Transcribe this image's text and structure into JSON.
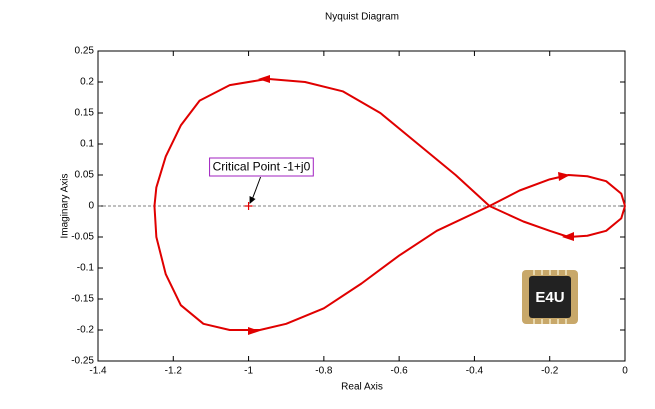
{
  "chart_data": {
    "type": "line",
    "title": "Nyquist Diagram",
    "xlabel": "Real Axis",
    "ylabel": "Imaginary Axis",
    "x": [
      0,
      -0.01,
      -0.05,
      -0.1,
      -0.15,
      -0.2,
      -0.27,
      -0.36,
      -0.45,
      -0.55,
      -0.65,
      -0.75,
      -0.85,
      -0.95,
      -1.05,
      -1.13,
      -1.18,
      -1.22,
      -1.245,
      -1.25,
      -1.245,
      -1.22,
      -1.18,
      -1.12,
      -1.05,
      -0.97,
      -0.9,
      -0.8,
      -0.7,
      -0.6,
      -0.5,
      -0.36,
      -0.28,
      -0.2,
      -0.15,
      -0.1,
      -0.05,
      -0.01,
      0
    ],
    "series": [
      {
        "color": "#e00000",
        "values": [
          0,
          -0.02,
          -0.04,
          -0.048,
          -0.05,
          -0.04,
          -0.025,
          0,
          0.05,
          0.1,
          0.15,
          0.185,
          0.2,
          0.205,
          0.195,
          0.17,
          0.13,
          0.08,
          0.03,
          0,
          -0.05,
          -0.11,
          -0.16,
          -0.19,
          -0.2,
          -0.2,
          -0.19,
          -0.165,
          -0.125,
          -0.08,
          -0.04,
          0,
          0.025,
          0.043,
          0.05,
          0.048,
          0.04,
          0.02,
          0
        ]
      }
    ],
    "critical_point": {
      "x": -1,
      "y": 0,
      "color": "#e00000"
    },
    "annotation": {
      "text": "Critical Point -1+j0",
      "x": -1,
      "y": 0
    },
    "xlim": [
      -1.4,
      0
    ],
    "ylim": [
      -0.25,
      0.25
    ],
    "xticks": [
      -1.4,
      -1.2,
      -1,
      -0.8,
      -0.6,
      -0.4,
      -0.2,
      0
    ],
    "yticks": [
      -0.25,
      -0.2,
      -0.15,
      -0.1,
      -0.05,
      0,
      0.05,
      0.1,
      0.15,
      0.2,
      0.25
    ],
    "grid": false,
    "logo_text": "E4U"
  }
}
